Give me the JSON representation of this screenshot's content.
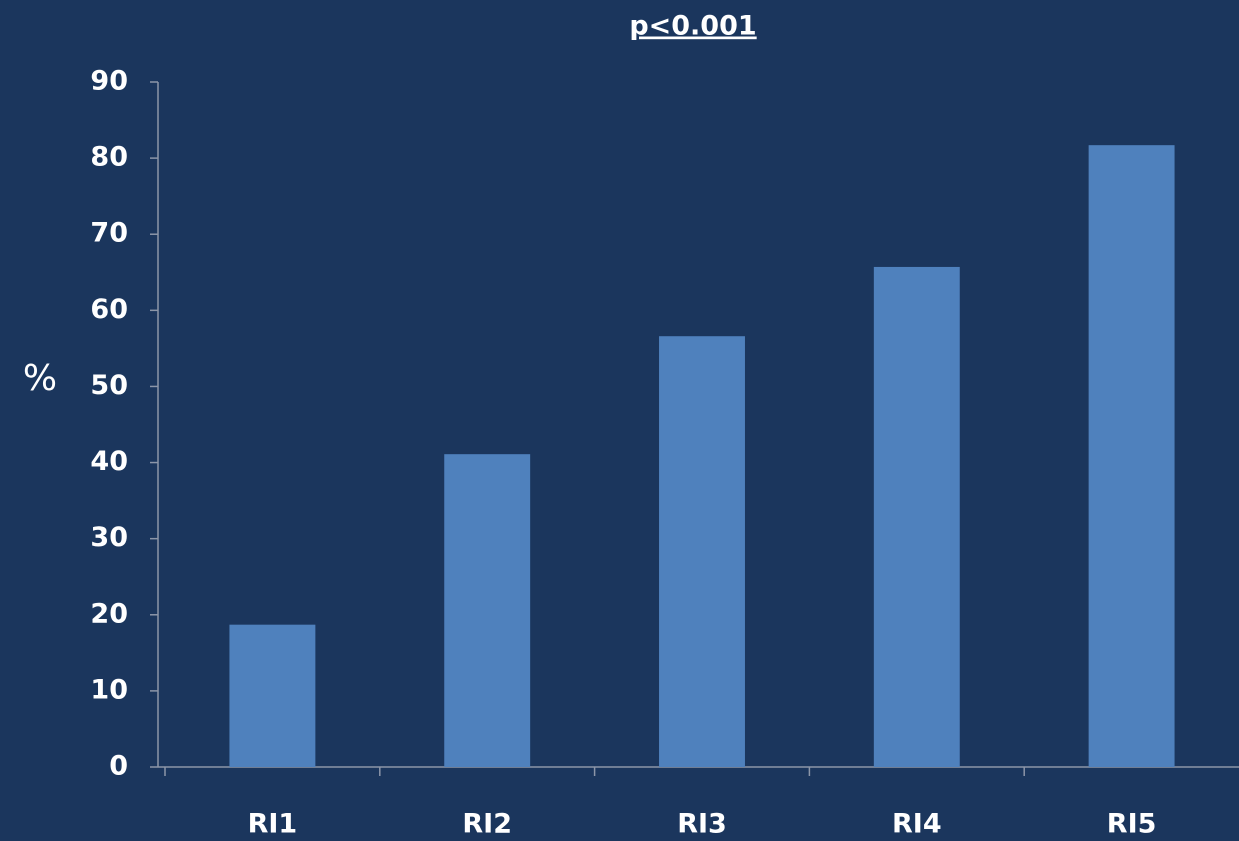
{
  "chart_data": {
    "type": "bar",
    "title": "p<0.001",
    "y_label": "%",
    "categories": [
      "RI1",
      "RI2",
      "RI3",
      "RI4",
      "RI5"
    ],
    "values": [
      18.7,
      41.1,
      56.6,
      65.7,
      81.7
    ],
    "color": "#4f81bd",
    "ylim": [
      0,
      90
    ],
    "yticks": [
      0,
      10,
      20,
      30,
      40,
      50,
      60,
      70,
      80,
      90
    ],
    "grid": false
  }
}
